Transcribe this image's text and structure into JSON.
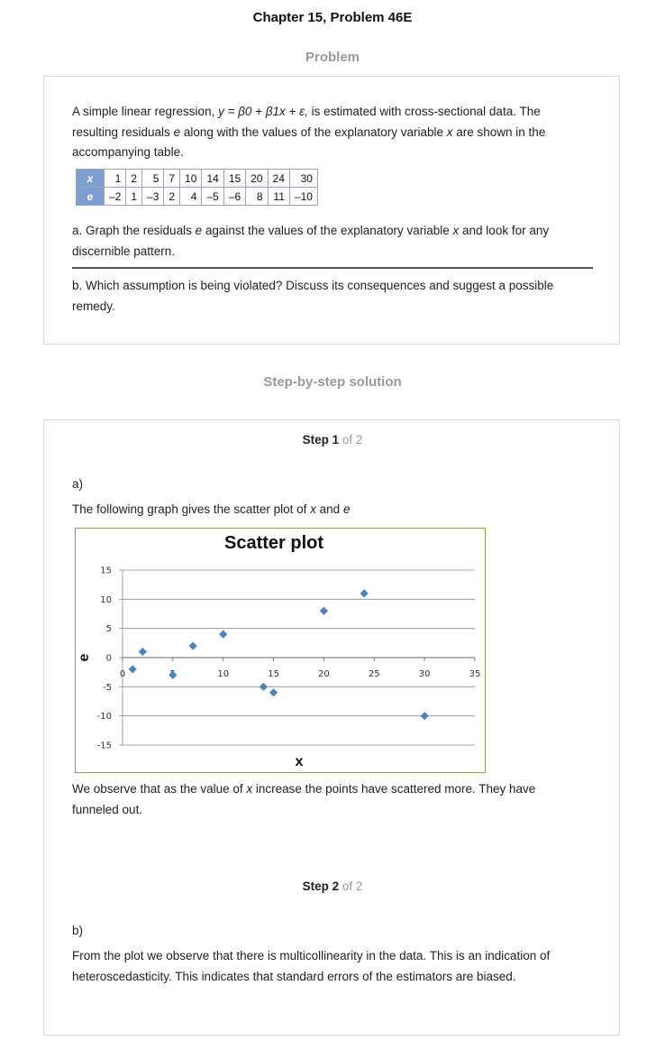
{
  "page": {
    "title": "Chapter 15, Problem 46E",
    "problem_heading": "Problem",
    "solution_heading": "Step-by-step solution"
  },
  "problem": {
    "intro_line1_pre": "A simple linear regression, ",
    "intro_eq": "y = β0 + β1x + ε,",
    "intro_line1_post": " is estimated with cross-sectional data. The",
    "intro_line2_pre": "resulting residuals ",
    "intro_line2_e": "e",
    "intro_line2_mid": " along with the values of the explanatory variable ",
    "intro_line2_x": "x",
    "intro_line2_post": " are shown in the",
    "intro_line3": "accompanying table.",
    "table": {
      "x_label": "x",
      "e_label": "e",
      "x_values": [
        "1",
        "2",
        "5",
        "7",
        "10",
        "14",
        "15",
        "20",
        "24",
        "30"
      ],
      "e_values": [
        "–2",
        "1",
        "–3",
        "2",
        "4",
        "–5",
        "–6",
        "8",
        "11",
        "–10"
      ]
    },
    "part_a_line1_pre": "a. Graph the residuals ",
    "part_a_e": "e",
    "part_a_line1_mid": " against the values of the explanatory variable ",
    "part_a_x": "x",
    "part_a_line1_post": " and look for any",
    "part_a_line2": "discernible pattern.",
    "part_b_line1": "b. Which assumption is being violated? Discuss its consequences and suggest a possible",
    "part_b_line2": "remedy."
  },
  "step1": {
    "label": "Step 1",
    "of": "of 2",
    "part": "a)",
    "text_pre": "The following graph gives the scatter plot of ",
    "text_x": "x",
    "text_mid": " and ",
    "text_e": "e",
    "obs_line1_pre": "We observe that as the value of ",
    "obs_line1_x": "x",
    "obs_line1_post": " increase the points have scattered more. They have",
    "obs_line2": "funneled out."
  },
  "step2": {
    "label": "Step 2",
    "of": "of 2",
    "part": "b)",
    "line1": "From the plot we observe that there is multicollinearity in the data. This is an indication of",
    "line2": "heteroscedasticity. This indicates that standard errors of the estimators are biased."
  },
  "chart_data": {
    "type": "scatter",
    "title": "Scatter plot",
    "xlabel": "x",
    "ylabel": "e",
    "xlim": [
      0,
      35
    ],
    "ylim": [
      -15,
      15
    ],
    "x_ticks": [
      0,
      5,
      10,
      15,
      20,
      25,
      30,
      35
    ],
    "y_ticks": [
      15,
      10,
      5,
      0,
      -5,
      -10,
      -15
    ],
    "grid": "horizontal",
    "x": [
      1,
      2,
      5,
      7,
      10,
      14,
      15,
      20,
      24,
      30
    ],
    "y": [
      -2,
      1,
      -3,
      2,
      4,
      -5,
      -6,
      8,
      11,
      -10
    ],
    "marker_color": "#4f81bd",
    "border_color": "#8ca24a"
  }
}
